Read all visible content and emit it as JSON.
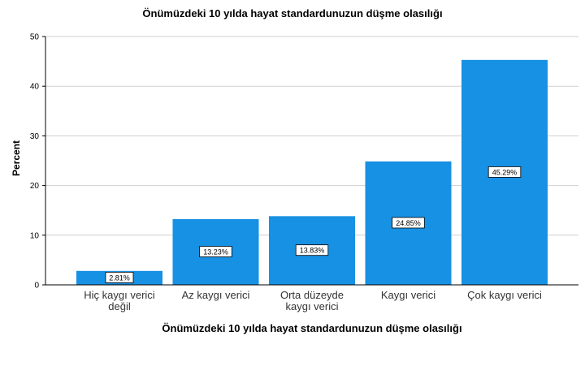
{
  "chart_data": {
    "type": "bar",
    "title": "Önümüzdeki 10 yılda hayat standardunuzun düşme olasılığı",
    "xlabel": "Önümüzdeki 10 yılda hayat standardunuzun düşme olasılığı",
    "ylabel": "Percent",
    "categories": [
      [
        "Hiç kaygı verici",
        "değil"
      ],
      [
        "Az kaygı verici"
      ],
      [
        "Orta düzeyde",
        "kaygı verici"
      ],
      [
        "Kaygı verici"
      ],
      [
        "Çok kaygı verici"
      ]
    ],
    "values": [
      2.81,
      13.23,
      13.83,
      24.85,
      45.29
    ],
    "data_labels": [
      "2.81%",
      "13.23%",
      "13.83%",
      "24.85%",
      "45.29%"
    ],
    "ylim": [
      0,
      50
    ],
    "yticks": [
      0,
      10,
      20,
      30,
      40,
      50
    ],
    "grid": true,
    "bar_color": "#1791e3"
  }
}
